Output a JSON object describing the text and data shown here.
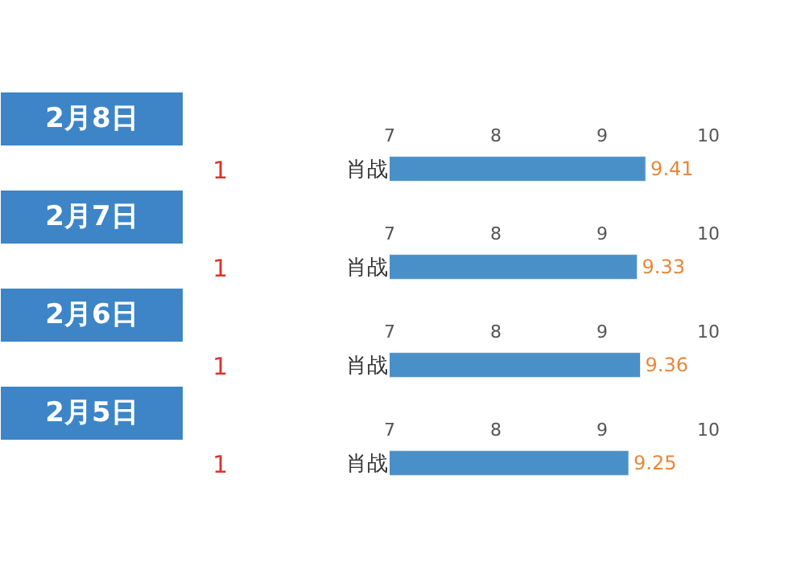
{
  "chart_data": [
    {
      "type": "bar",
      "orientation": "horizontal",
      "categories": [
        "肖战"
      ],
      "values": [
        9.41
      ],
      "color": "#4a90c8",
      "xlim": [
        7,
        10
      ],
      "xticks": [
        7,
        8,
        9,
        10
      ],
      "data_labels": true,
      "annotations": [
        "2月8日",
        "1"
      ]
    },
    {
      "type": "bar",
      "orientation": "horizontal",
      "categories": [
        "肖战"
      ],
      "values": [
        9.33
      ],
      "color": "#4a90c8",
      "xlim": [
        7,
        10
      ],
      "xticks": [
        7,
        8,
        9,
        10
      ],
      "data_labels": true,
      "annotations": [
        "2月7日",
        "1"
      ]
    },
    {
      "type": "bar",
      "orientation": "horizontal",
      "categories": [
        "肖战"
      ],
      "values": [
        9.36
      ],
      "color": "#4a90c8",
      "xlim": [
        7,
        10
      ],
      "xticks": [
        7,
        8,
        9,
        10
      ],
      "data_labels": true,
      "annotations": [
        "2月6日",
        "1"
      ]
    },
    {
      "type": "bar",
      "orientation": "horizontal",
      "categories": [
        "肖战"
      ],
      "values": [
        9.25
      ],
      "color": "#4a90c8",
      "xlim": [
        7,
        10
      ],
      "xticks": [
        7,
        8,
        9,
        10
      ],
      "data_labels": true,
      "annotations": [
        "2月5日",
        "1"
      ]
    }
  ]
}
